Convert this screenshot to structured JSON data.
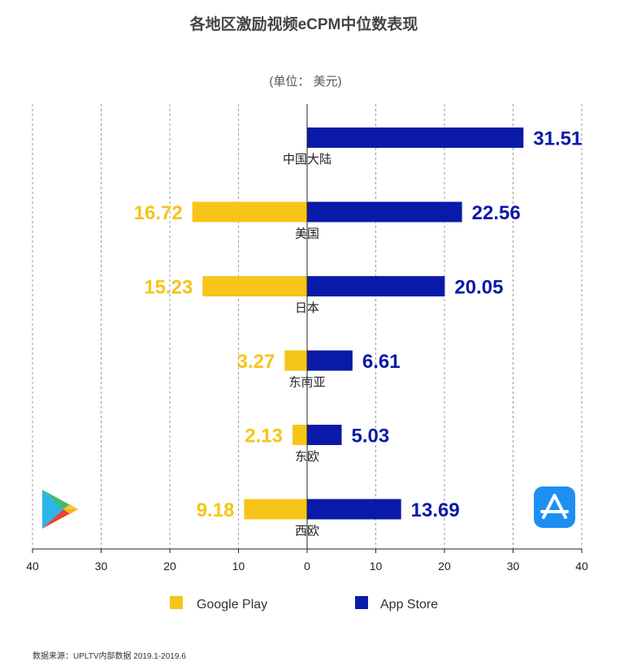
{
  "chart_data": {
    "type": "bar",
    "orientation": "horizontal-diverging",
    "title": "各地区激励视频eCPM中位数表现",
    "unit_label": "(单位： 美元)",
    "categories": [
      "中国大陆",
      "美国",
      "日本",
      "东南亚",
      "东欧",
      "西欧"
    ],
    "series": [
      {
        "name": "Google Play",
        "values": [
          null,
          16.72,
          15.23,
          3.27,
          2.13,
          9.18
        ],
        "color": "#F5C518",
        "direction": "left"
      },
      {
        "name": "App Store",
        "values": [
          31.51,
          22.56,
          20.05,
          6.61,
          5.03,
          13.69
        ],
        "color": "#0A1AA8",
        "direction": "right"
      }
    ],
    "value_labels": {
      "Google Play": [
        "",
        "16.72",
        "15.23",
        "3.27",
        "2.13",
        "9.18"
      ],
      "App Store": [
        "31.51",
        "22.56",
        "20.05",
        "6.61",
        "5.03",
        "13.69"
      ]
    },
    "xlim": [
      -40,
      40
    ],
    "ticks": [
      -40,
      -30,
      -20,
      -10,
      0,
      10,
      20,
      30,
      40
    ],
    "tick_labels": [
      "40",
      "30",
      "20",
      "10",
      "0",
      "10",
      "20",
      "30",
      "40"
    ],
    "grid": "vertical-dashed",
    "legend_position": "bottom",
    "source": "数据来源：UPLTV内部数据 2019.1-2019.6"
  },
  "icons": {
    "left": "google-play-icon",
    "right": "app-store-icon"
  }
}
